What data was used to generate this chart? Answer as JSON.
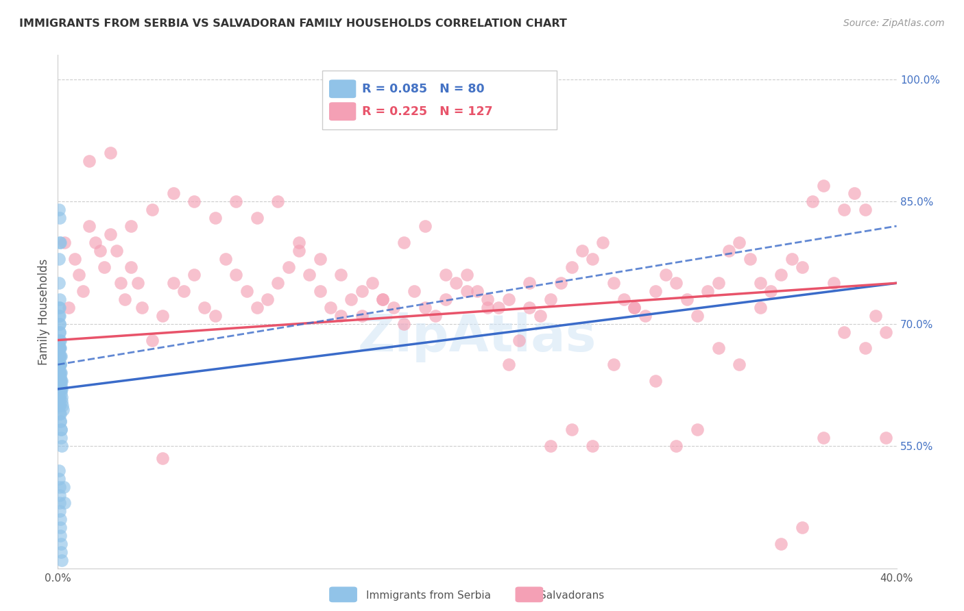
{
  "title": "IMMIGRANTS FROM SERBIA VS SALVADORAN FAMILY HOUSEHOLDS CORRELATION CHART",
  "source": "Source: ZipAtlas.com",
  "ylabel": "Family Households",
  "right_yticks": [
    55.0,
    70.0,
    85.0,
    100.0
  ],
  "right_ytick_labels": [
    "55.0%",
    "70.0%",
    "85.0%",
    "100.0%"
  ],
  "xmin": 0.0,
  "xmax": 40.0,
  "ymin": 40.0,
  "ymax": 103.0,
  "legend_r1": "0.085",
  "legend_n1": "80",
  "legend_r2": "0.225",
  "legend_n2": "127",
  "blue_color": "#91c3e8",
  "pink_color": "#f4a0b5",
  "blue_line_color": "#3a6bc9",
  "pink_line_color": "#e8536a",
  "watermark": "ZipAtlas",
  "serbia_x": [
    0.05,
    0.08,
    0.1,
    0.12,
    0.05,
    0.06,
    0.07,
    0.08,
    0.09,
    0.1,
    0.1,
    0.12,
    0.13,
    0.15,
    0.05,
    0.06,
    0.07,
    0.08,
    0.09,
    0.1,
    0.11,
    0.12,
    0.05,
    0.06,
    0.07,
    0.08,
    0.09,
    0.1,
    0.1,
    0.11,
    0.12,
    0.13,
    0.15,
    0.16,
    0.18,
    0.2,
    0.05,
    0.06,
    0.07,
    0.08,
    0.09,
    0.1,
    0.1,
    0.11,
    0.12,
    0.13,
    0.14,
    0.15,
    0.16,
    0.18,
    0.05,
    0.06,
    0.07,
    0.08,
    0.09,
    0.1,
    0.11,
    0.12,
    0.13,
    0.14,
    0.15,
    0.16,
    0.18,
    0.2,
    0.22,
    0.25,
    0.28,
    0.3,
    0.05,
    0.06,
    0.07,
    0.08,
    0.09,
    0.1,
    0.11,
    0.12,
    0.13,
    0.14,
    0.15,
    0.17
  ],
  "serbia_y": [
    84.0,
    80.0,
    83.0,
    80.0,
    78.0,
    75.0,
    73.0,
    70.0,
    72.0,
    71.0,
    69.0,
    68.0,
    67.0,
    66.0,
    65.0,
    65.0,
    64.0,
    64.0,
    63.0,
    63.0,
    63.0,
    62.0,
    72.0,
    71.0,
    70.0,
    69.0,
    68.0,
    67.0,
    66.0,
    66.0,
    65.0,
    65.0,
    64.0,
    63.0,
    63.0,
    62.0,
    62.0,
    61.0,
    61.0,
    60.5,
    60.0,
    60.0,
    59.0,
    59.0,
    58.0,
    58.0,
    57.0,
    57.0,
    56.0,
    55.0,
    68.0,
    67.0,
    67.0,
    66.0,
    65.0,
    65.0,
    64.0,
    63.5,
    63.0,
    62.5,
    62.0,
    61.5,
    61.0,
    60.5,
    60.0,
    59.5,
    50.0,
    48.0,
    52.0,
    51.0,
    50.0,
    49.0,
    48.0,
    47.0,
    46.0,
    45.0,
    44.0,
    43.0,
    42.0,
    41.0
  ],
  "salvador_x": [
    0.3,
    0.5,
    0.8,
    1.0,
    1.2,
    1.5,
    1.8,
    2.0,
    2.2,
    2.5,
    2.8,
    3.0,
    3.2,
    3.5,
    3.8,
    4.0,
    4.5,
    5.0,
    5.5,
    6.0,
    6.5,
    7.0,
    7.5,
    8.0,
    8.5,
    9.0,
    9.5,
    10.0,
    10.5,
    11.0,
    11.5,
    12.0,
    12.5,
    13.0,
    13.5,
    14.0,
    14.5,
    15.0,
    15.5,
    16.0,
    16.5,
    17.0,
    17.5,
    18.0,
    18.5,
    19.0,
    19.5,
    20.0,
    20.5,
    21.0,
    21.5,
    22.0,
    22.5,
    23.0,
    23.5,
    24.0,
    24.5,
    25.0,
    25.5,
    26.0,
    26.5,
    27.0,
    27.5,
    28.0,
    28.5,
    29.0,
    29.5,
    30.0,
    30.5,
    31.0,
    31.5,
    32.0,
    32.5,
    33.0,
    33.5,
    34.0,
    34.5,
    35.0,
    35.5,
    36.0,
    36.5,
    37.0,
    37.5,
    38.0,
    38.5,
    39.0,
    39.5,
    1.5,
    2.5,
    3.5,
    4.5,
    5.5,
    6.5,
    7.5,
    8.5,
    9.5,
    10.5,
    11.5,
    12.5,
    13.5,
    14.5,
    15.5,
    16.5,
    17.5,
    18.5,
    19.5,
    20.5,
    21.5,
    22.5,
    23.5,
    24.5,
    25.5,
    26.5,
    27.5,
    28.5,
    29.5,
    30.5,
    31.5,
    32.5,
    33.5,
    34.5,
    35.5,
    36.5,
    37.5,
    38.5,
    39.5,
    5.0
  ],
  "salvador_y": [
    80.0,
    72.0,
    78.0,
    76.0,
    74.0,
    82.0,
    80.0,
    79.0,
    77.0,
    81.0,
    79.0,
    75.0,
    73.0,
    77.0,
    75.0,
    72.0,
    68.0,
    71.0,
    75.0,
    74.0,
    76.0,
    72.0,
    71.0,
    78.0,
    76.0,
    74.0,
    72.0,
    73.0,
    75.0,
    77.0,
    79.0,
    76.0,
    74.0,
    72.0,
    71.0,
    73.0,
    71.0,
    75.0,
    73.0,
    72.0,
    70.0,
    74.0,
    72.0,
    71.0,
    73.0,
    75.0,
    76.0,
    74.0,
    73.0,
    72.0,
    65.0,
    68.0,
    72.0,
    71.0,
    73.0,
    75.0,
    77.0,
    79.0,
    78.0,
    80.0,
    75.0,
    73.0,
    72.0,
    71.0,
    74.0,
    76.0,
    75.0,
    73.0,
    71.0,
    74.0,
    67.0,
    79.0,
    80.0,
    78.0,
    75.0,
    74.0,
    76.0,
    78.0,
    77.0,
    85.0,
    87.0,
    75.0,
    84.0,
    86.0,
    84.0,
    71.0,
    69.0,
    90.0,
    91.0,
    82.0,
    84.0,
    86.0,
    85.0,
    83.0,
    85.0,
    83.0,
    85.0,
    80.0,
    78.0,
    76.0,
    74.0,
    73.0,
    80.0,
    82.0,
    76.0,
    74.0,
    72.0,
    73.0,
    75.0,
    55.0,
    57.0,
    55.0,
    65.0,
    72.0,
    63.0,
    55.0,
    57.0,
    75.0,
    65.0,
    72.0,
    43.0,
    45.0,
    56.0,
    69.0,
    67.0,
    56.0,
    53.5
  ]
}
